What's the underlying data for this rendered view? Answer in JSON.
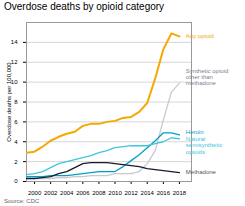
{
  "chart_data": {
    "type": "line",
    "title": "Overdose deaths by opioid category",
    "ylabel": "Overdose deaths per 100,000",
    "source": "Source: CDC",
    "x": [
      1999,
      2000,
      2001,
      2002,
      2003,
      2004,
      2005,
      2006,
      2007,
      2008,
      2009,
      2010,
      2011,
      2012,
      2013,
      2014,
      2015,
      2016,
      2017,
      2018
    ],
    "series": [
      {
        "name": "Any opioid",
        "color": "#f5a800",
        "values": [
          2.9,
          3.0,
          3.5,
          4.1,
          4.5,
          4.8,
          5.0,
          5.6,
          5.8,
          5.8,
          6.0,
          6.1,
          6.4,
          6.5,
          7.0,
          7.9,
          10.4,
          13.3,
          14.9,
          14.6
        ]
      },
      {
        "name": "Synthetic opioid other than methadone",
        "color": "#c8c8d0",
        "values": [
          0.3,
          0.3,
          0.3,
          0.3,
          0.4,
          0.4,
          0.5,
          0.5,
          0.6,
          0.6,
          0.6,
          0.8,
          0.8,
          0.8,
          1.0,
          1.8,
          3.1,
          6.2,
          9.0,
          9.9
        ]
      },
      {
        "name": "Heroin",
        "color": "#00a0c6",
        "values": [
          0.5,
          0.5,
          0.5,
          0.6,
          0.6,
          0.6,
          0.7,
          0.8,
          0.9,
          1.0,
          1.0,
          1.0,
          1.5,
          2.1,
          2.7,
          3.4,
          4.1,
          4.9,
          4.9,
          4.7
        ]
      },
      {
        "name": "Natural semisynthetic opioids",
        "color": "#40c4e0",
        "values": [
          0.7,
          0.8,
          1.0,
          1.4,
          1.8,
          2.0,
          2.2,
          2.4,
          2.6,
          2.9,
          3.1,
          3.4,
          3.5,
          3.6,
          3.6,
          3.6,
          3.8,
          4.0,
          4.4,
          4.3
        ]
      },
      {
        "name": "Methadone",
        "color": "#1a1a2e",
        "values": [
          0.3,
          0.3,
          0.4,
          0.5,
          0.8,
          1.0,
          1.4,
          1.8,
          1.9,
          1.9,
          1.9,
          1.8,
          1.7,
          1.6,
          1.5,
          1.3,
          1.2,
          1.1,
          1.0,
          0.9
        ]
      }
    ],
    "annotations": [
      {
        "text": "Any opioid",
        "x": 2018.8,
        "y": 14.6,
        "color": "#f5a800"
      },
      {
        "text": "Synthetic opioid\nother than\nmethadone",
        "x": 2018.8,
        "y": 10.5,
        "color": "#808090"
      },
      {
        "text": "Heroin",
        "x": 2018.8,
        "y": 5.0,
        "color": "#00a0c6"
      },
      {
        "text": "Natural\nsemisynthetic\nopioids",
        "x": 2018.8,
        "y": 3.8,
        "color": "#40c4e0"
      },
      {
        "text": "Methadone",
        "x": 2018.8,
        "y": 1.0,
        "color": "#555555"
      }
    ],
    "xlim": [
      1999,
      2019.5
    ],
    "xticks": [
      2000,
      2002,
      2004,
      2006,
      2008,
      2010,
      2012,
      2014,
      2016,
      2018
    ],
    "ylim": [
      0,
      16
    ],
    "yticks": [
      0,
      2,
      4,
      6,
      8,
      10,
      12,
      14
    ],
    "grid": true
  }
}
